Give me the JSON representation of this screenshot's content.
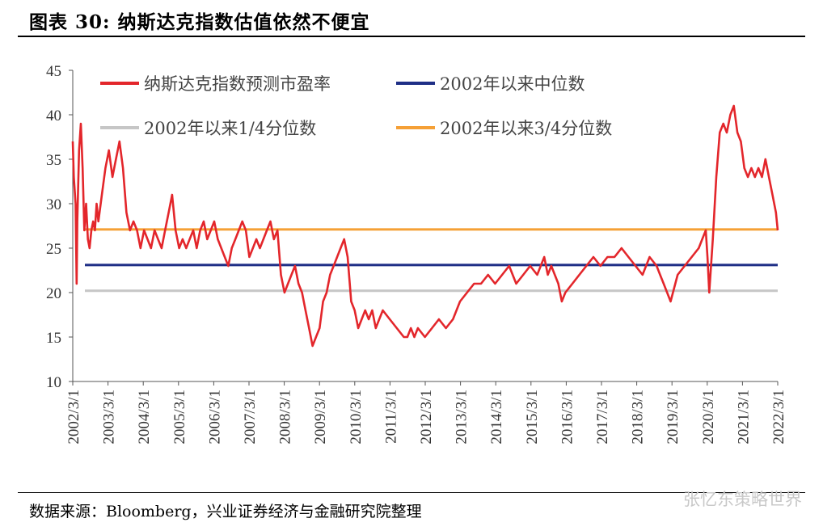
{
  "header": {
    "title": "图表 30:  纳斯达克指数估值依然不便宜"
  },
  "footer": {
    "source": "数据来源：Bloomberg，兴业证券经济与金融研究院整理",
    "watermark": "张忆东策略世界"
  },
  "colors": {
    "pe": "#e3262b",
    "median": "#1f2f86",
    "q1": "#c6c6c6",
    "q3": "#f5a036"
  },
  "chart_data": {
    "type": "line",
    "title": "",
    "xlabel": "",
    "ylabel": "",
    "ylim": [
      10,
      45
    ],
    "yticks": [
      10,
      15,
      20,
      25,
      30,
      35,
      40,
      45
    ],
    "xlim": [
      2002.17,
      2022.25
    ],
    "xticks": [
      "2002/3/1",
      "2003/3/1",
      "2004/3/1",
      "2005/3/1",
      "2006/3/1",
      "2007/3/1",
      "2008/3/1",
      "2009/3/1",
      "2010/3/1",
      "2011/3/1",
      "2012/3/1",
      "2013/3/1",
      "2014/3/1",
      "2015/3/1",
      "2016/3/1",
      "2017/3/1",
      "2018/3/1",
      "2019/3/1",
      "2020/3/1",
      "2021/3/1",
      "2022/3/1"
    ],
    "legend_position": "top",
    "series": [
      {
        "name": "纳斯达克指数预测市盈率",
        "color_key": "pe",
        "x": [
          2002.17,
          2002.2,
          2002.25,
          2002.28,
          2002.3,
          2002.35,
          2002.4,
          2002.45,
          2002.5,
          2002.55,
          2002.6,
          2002.65,
          2002.7,
          2002.75,
          2002.8,
          2002.85,
          2002.9,
          2003.0,
          2003.1,
          2003.2,
          2003.3,
          2003.4,
          2003.5,
          2003.6,
          2003.7,
          2003.8,
          2003.9,
          2004.0,
          2004.1,
          2004.2,
          2004.3,
          2004.4,
          2004.5,
          2004.6,
          2004.7,
          2004.8,
          2004.9,
          2005.0,
          2005.1,
          2005.2,
          2005.3,
          2005.4,
          2005.5,
          2005.6,
          2005.7,
          2005.8,
          2005.9,
          2006.0,
          2006.1,
          2006.2,
          2006.3,
          2006.4,
          2006.5,
          2006.6,
          2006.7,
          2006.8,
          2006.9,
          2007.0,
          2007.1,
          2007.2,
          2007.3,
          2007.4,
          2007.5,
          2007.6,
          2007.7,
          2007.8,
          2007.9,
          2008.0,
          2008.1,
          2008.2,
          2008.3,
          2008.4,
          2008.5,
          2008.6,
          2008.7,
          2008.8,
          2008.9,
          2009.0,
          2009.1,
          2009.2,
          2009.3,
          2009.4,
          2009.5,
          2009.6,
          2009.7,
          2009.8,
          2009.9,
          2010.0,
          2010.1,
          2010.2,
          2010.3,
          2010.4,
          2010.5,
          2010.6,
          2010.7,
          2010.8,
          2010.9,
          2011.0,
          2011.2,
          2011.4,
          2011.6,
          2011.7,
          2011.8,
          2011.9,
          2012.0,
          2012.2,
          2012.4,
          2012.6,
          2012.8,
          2013.0,
          2013.2,
          2013.4,
          2013.6,
          2013.8,
          2014.0,
          2014.2,
          2014.4,
          2014.6,
          2014.8,
          2015.0,
          2015.2,
          2015.4,
          2015.6,
          2015.7,
          2015.8,
          2016.0,
          2016.1,
          2016.2,
          2016.4,
          2016.6,
          2016.8,
          2017.0,
          2017.2,
          2017.4,
          2017.6,
          2017.8,
          2018.0,
          2018.2,
          2018.4,
          2018.6,
          2018.8,
          2018.9,
          2019.0,
          2019.2,
          2019.4,
          2019.6,
          2019.8,
          2020.0,
          2020.1,
          2020.2,
          2020.25,
          2020.3,
          2020.4,
          2020.5,
          2020.6,
          2020.7,
          2020.8,
          2020.9,
          2021.0,
          2021.1,
          2021.2,
          2021.3,
          2021.4,
          2021.5,
          2021.6,
          2021.7,
          2021.8,
          2021.9,
          2022.0,
          2022.1,
          2022.2,
          2022.25
        ],
        "y": [
          37,
          33,
          30,
          21,
          28,
          36,
          39,
          34,
          27,
          30,
          26,
          25,
          27,
          28,
          27,
          30,
          28,
          31,
          34,
          36,
          33,
          35,
          37,
          34,
          29,
          27,
          28,
          27,
          25,
          27,
          26,
          25,
          27,
          26,
          25,
          27,
          29,
          31,
          27,
          25,
          26,
          25,
          26,
          27,
          25,
          27,
          28,
          26,
          27,
          28,
          26,
          25,
          24,
          23,
          25,
          26,
          27,
          28,
          27,
          24,
          25,
          26,
          25,
          26,
          27,
          28,
          26,
          27,
          22,
          20,
          21,
          22,
          23,
          21,
          20,
          18,
          16,
          14,
          15,
          16,
          19,
          20,
          22,
          23,
          24,
          25,
          26,
          24,
          19,
          18,
          16,
          17,
          18,
          17,
          18,
          16,
          17,
          18,
          17,
          16,
          15,
          15,
          16,
          15,
          16,
          15,
          16,
          17,
          16,
          17,
          19,
          20,
          21,
          21,
          22,
          21,
          22,
          23,
          21,
          22,
          23,
          22,
          24,
          22,
          23,
          21,
          19,
          20,
          21,
          22,
          23,
          24,
          23,
          24,
          24,
          25,
          24,
          23,
          22,
          24,
          23,
          22,
          21,
          19,
          22,
          23,
          24,
          25,
          26,
          27,
          24,
          20,
          26,
          33,
          38,
          39,
          38,
          40,
          41,
          38,
          37,
          34,
          33,
          34,
          33,
          34,
          33,
          35,
          33,
          31,
          29,
          27
        ]
      },
      {
        "name": "2002年以来中位数",
        "color_key": "median",
        "values": [
          23.1
        ]
      },
      {
        "name": "2002年以来1/4分位数",
        "color_key": "q1",
        "values": [
          20.2
        ]
      },
      {
        "name": "2002年以来3/4分位数",
        "color_key": "q3",
        "values": [
          27.1
        ]
      }
    ]
  }
}
